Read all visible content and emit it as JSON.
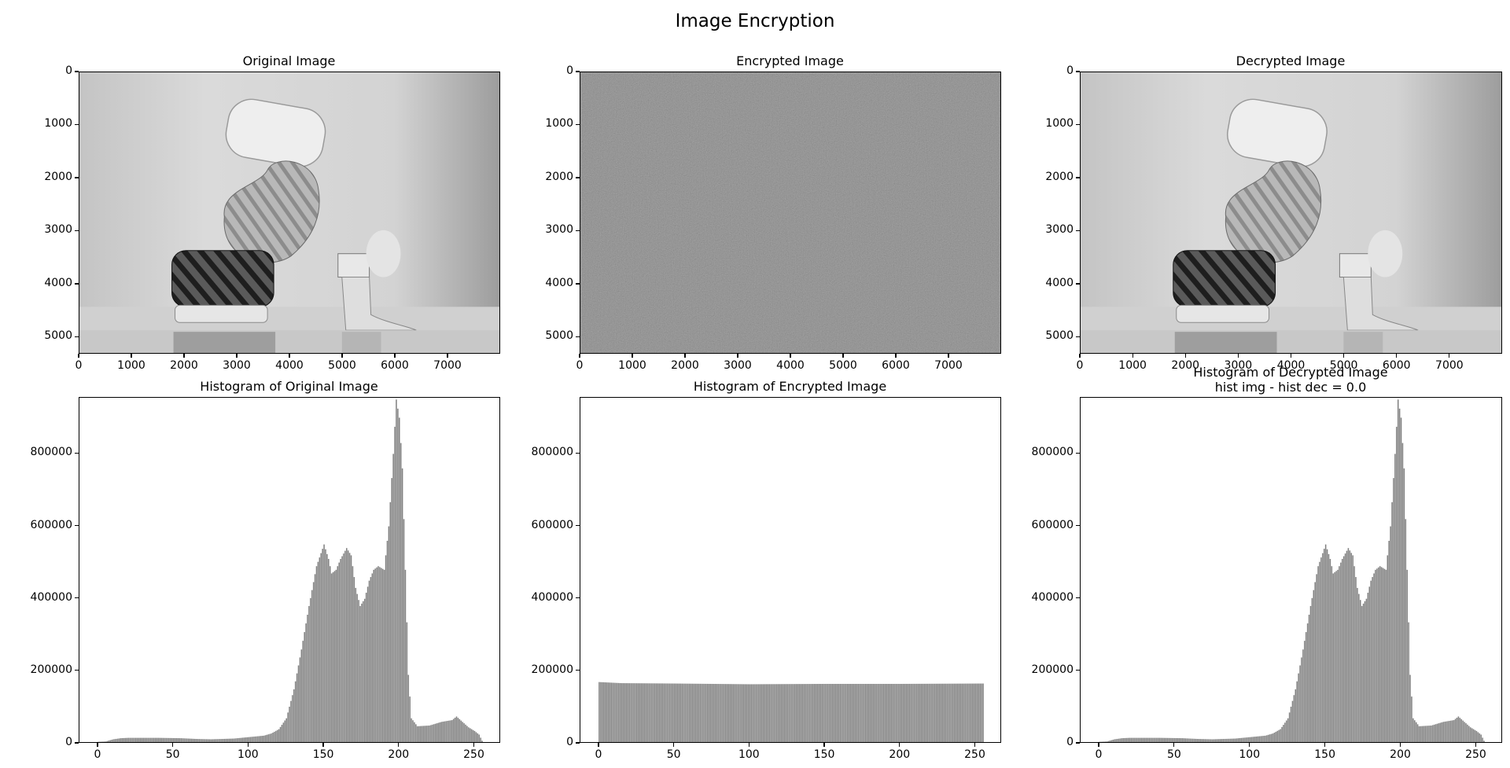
{
  "figure": {
    "suptitle": "Image Encryption"
  },
  "chart_data": [
    {
      "type": "image",
      "title": "Original Image",
      "xticks": [
        "0",
        "1000",
        "2000",
        "3000",
        "4000",
        "5000",
        "6000",
        "7000"
      ],
      "yticks": [
        "0",
        "1000",
        "2000",
        "3000",
        "4000",
        "5000"
      ],
      "xlim": [
        0,
        8000
      ],
      "ylim": [
        5320,
        0
      ],
      "grayscale": true
    },
    {
      "type": "image",
      "title": "Encrypted Image",
      "xticks": [
        "0",
        "1000",
        "2000",
        "3000",
        "4000",
        "5000",
        "6000",
        "7000"
      ],
      "yticks": [
        "0",
        "1000",
        "2000",
        "3000",
        "4000",
        "5000"
      ],
      "xlim": [
        0,
        8000
      ],
      "ylim": [
        5320,
        0
      ],
      "grayscale": true
    },
    {
      "type": "image",
      "title": "Decrypted Image",
      "xticks": [
        "0",
        "1000",
        "2000",
        "3000",
        "4000",
        "5000",
        "6000",
        "7000"
      ],
      "yticks": [
        "0",
        "1000",
        "2000",
        "3000",
        "4000",
        "5000"
      ],
      "xlim": [
        0,
        8000
      ],
      "ylim": [
        5320,
        0
      ],
      "grayscale": true
    },
    {
      "type": "bar",
      "title": "Histogram of Original Image",
      "xticks": [
        "0",
        "50",
        "100",
        "150",
        "200",
        "250"
      ],
      "yticks": [
        "0",
        "200000",
        "400000",
        "600000",
        "800000"
      ],
      "xlim": [
        -12.5,
        267.5
      ],
      "ylim": [
        0,
        955000
      ],
      "bar_color": "#808080",
      "profile": [
        [
          0,
          5000
        ],
        [
          5,
          6000
        ],
        [
          10,
          12000
        ],
        [
          15,
          15000
        ],
        [
          20,
          16000
        ],
        [
          40,
          16000
        ],
        [
          55,
          15000
        ],
        [
          65,
          13000
        ],
        [
          75,
          12000
        ],
        [
          90,
          14000
        ],
        [
          100,
          18000
        ],
        [
          110,
          22000
        ],
        [
          115,
          28000
        ],
        [
          120,
          40000
        ],
        [
          125,
          70000
        ],
        [
          130,
          150000
        ],
        [
          135,
          260000
        ],
        [
          140,
          380000
        ],
        [
          145,
          490000
        ],
        [
          150,
          550000
        ],
        [
          153,
          510000
        ],
        [
          155,
          470000
        ],
        [
          158,
          480000
        ],
        [
          161,
          510000
        ],
        [
          165,
          540000
        ],
        [
          168,
          520000
        ],
        [
          171,
          430000
        ],
        [
          174,
          380000
        ],
        [
          177,
          400000
        ],
        [
          180,
          450000
        ],
        [
          183,
          480000
        ],
        [
          186,
          490000
        ],
        [
          190,
          480000
        ],
        [
          193,
          600000
        ],
        [
          196,
          800000
        ],
        [
          198,
          950000
        ],
        [
          200,
          900000
        ],
        [
          202,
          760000
        ],
        [
          204,
          480000
        ],
        [
          206,
          190000
        ],
        [
          208,
          70000
        ],
        [
          212,
          48000
        ],
        [
          220,
          50000
        ],
        [
          228,
          60000
        ],
        [
          235,
          65000
        ],
        [
          238,
          75000
        ],
        [
          242,
          60000
        ],
        [
          246,
          45000
        ],
        [
          250,
          35000
        ],
        [
          253,
          25000
        ],
        [
          255,
          8000
        ]
      ]
    },
    {
      "type": "bar",
      "title": "Histogram of Encrypted Image",
      "xticks": [
        "0",
        "50",
        "100",
        "150",
        "200",
        "250"
      ],
      "yticks": [
        "0",
        "200000",
        "400000",
        "600000",
        "800000"
      ],
      "xlim": [
        -12.5,
        267.5
      ],
      "ylim": [
        0,
        955000
      ],
      "bar_color": "#808080",
      "profile": [
        [
          0,
          170000
        ],
        [
          15,
          167000
        ],
        [
          50,
          166000
        ],
        [
          100,
          164000
        ],
        [
          150,
          165000
        ],
        [
          200,
          165000
        ],
        [
          255,
          166000
        ]
      ]
    },
    {
      "type": "bar",
      "title": "Histogram of Decrypted Image\nhist img - hist dec = 0.0",
      "title_lines": [
        "Histogram of Decrypted Image",
        "hist img - hist dec = 0.0"
      ],
      "xticks": [
        "0",
        "50",
        "100",
        "150",
        "200",
        "250"
      ],
      "yticks": [
        "0",
        "200000",
        "400000",
        "600000",
        "800000"
      ],
      "xlim": [
        -12.5,
        267.5
      ],
      "ylim": [
        0,
        955000
      ],
      "bar_color": "#808080",
      "profile": [
        [
          0,
          5000
        ],
        [
          5,
          6000
        ],
        [
          10,
          12000
        ],
        [
          15,
          15000
        ],
        [
          20,
          16000
        ],
        [
          40,
          16000
        ],
        [
          55,
          15000
        ],
        [
          65,
          13000
        ],
        [
          75,
          12000
        ],
        [
          90,
          14000
        ],
        [
          100,
          18000
        ],
        [
          110,
          22000
        ],
        [
          115,
          28000
        ],
        [
          120,
          40000
        ],
        [
          125,
          70000
        ],
        [
          130,
          150000
        ],
        [
          135,
          260000
        ],
        [
          140,
          380000
        ],
        [
          145,
          490000
        ],
        [
          150,
          550000
        ],
        [
          153,
          510000
        ],
        [
          155,
          470000
        ],
        [
          158,
          480000
        ],
        [
          161,
          510000
        ],
        [
          165,
          540000
        ],
        [
          168,
          520000
        ],
        [
          171,
          430000
        ],
        [
          174,
          380000
        ],
        [
          177,
          400000
        ],
        [
          180,
          450000
        ],
        [
          183,
          480000
        ],
        [
          186,
          490000
        ],
        [
          190,
          480000
        ],
        [
          193,
          600000
        ],
        [
          196,
          800000
        ],
        [
          198,
          950000
        ],
        [
          200,
          900000
        ],
        [
          202,
          760000
        ],
        [
          204,
          480000
        ],
        [
          206,
          190000
        ],
        [
          208,
          70000
        ],
        [
          212,
          48000
        ],
        [
          220,
          50000
        ],
        [
          228,
          60000
        ],
        [
          235,
          65000
        ],
        [
          238,
          75000
        ],
        [
          242,
          60000
        ],
        [
          246,
          45000
        ],
        [
          250,
          35000
        ],
        [
          253,
          25000
        ],
        [
          255,
          8000
        ]
      ]
    }
  ]
}
